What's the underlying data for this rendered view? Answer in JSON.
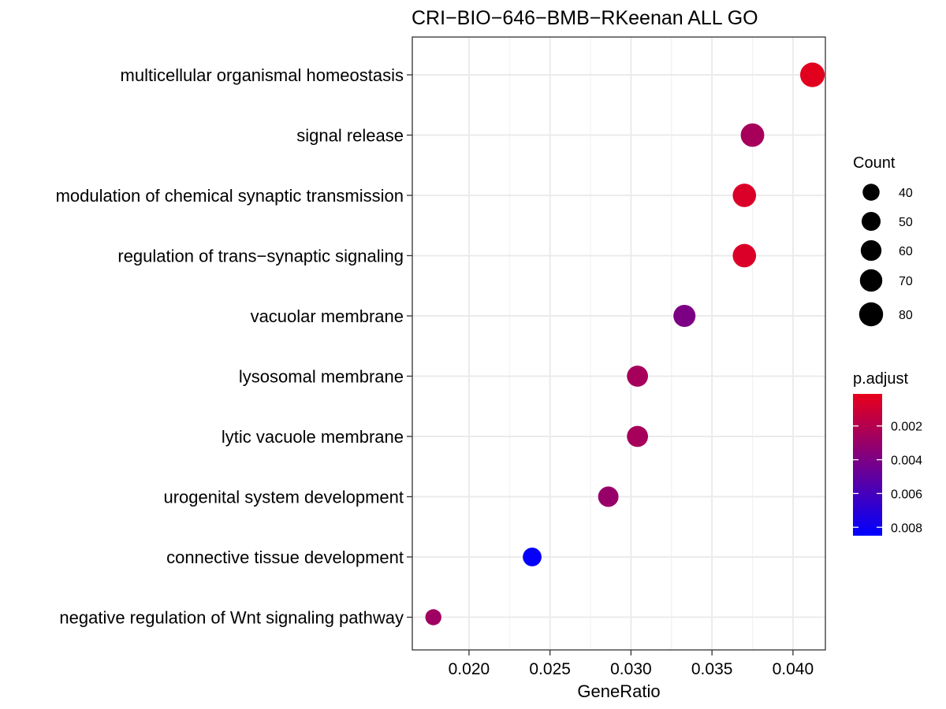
{
  "chart_data": {
    "type": "scatter",
    "title": "CRI−BIO−646−BMB−RKeenan ALL GO",
    "xlabel": "GeneRatio",
    "ylabel": "",
    "xlim": [
      0.0165,
      0.042
    ],
    "x_ticks": [
      0.02,
      0.025,
      0.03,
      0.035,
      0.04
    ],
    "x_tick_labels": [
      "0.020",
      "0.025",
      "0.030",
      "0.035",
      "0.040"
    ],
    "grid": true,
    "categories": [
      "multicellular organismal homeostasis",
      "signal release",
      "modulation of chemical synaptic transmission",
      "regulation of trans−synaptic signaling",
      "vacuolar membrane",
      "lysosomal membrane",
      "lytic vacuole membrane",
      "urogenital system development",
      "connective tissue development",
      "negative regulation of Wnt signaling pathway"
    ],
    "points": [
      {
        "category": "multicellular organismal homeostasis",
        "gene_ratio": 0.0412,
        "count": 84,
        "p_adjust": 0.0003
      },
      {
        "category": "signal release",
        "gene_ratio": 0.0375,
        "count": 77,
        "p_adjust": 0.0025
      },
      {
        "category": "modulation of chemical synaptic transmission",
        "gene_ratio": 0.037,
        "count": 76,
        "p_adjust": 0.0006
      },
      {
        "category": "regulation of trans−synaptic signaling",
        "gene_ratio": 0.037,
        "count": 76,
        "p_adjust": 0.0006
      },
      {
        "category": "vacuolar membrane",
        "gene_ratio": 0.0333,
        "count": 68,
        "p_adjust": 0.004
      },
      {
        "category": "lysosomal membrane",
        "gene_ratio": 0.0304,
        "count": 62,
        "p_adjust": 0.0025
      },
      {
        "category": "lytic vacuole membrane",
        "gene_ratio": 0.0304,
        "count": 62,
        "p_adjust": 0.0025
      },
      {
        "category": "urogenital system development",
        "gene_ratio": 0.0286,
        "count": 58,
        "p_adjust": 0.003
      },
      {
        "category": "connective tissue development",
        "gene_ratio": 0.0239,
        "count": 49,
        "p_adjust": 0.0083
      },
      {
        "category": "negative regulation of Wnt signaling pathway",
        "gene_ratio": 0.0178,
        "count": 36,
        "p_adjust": 0.0027
      }
    ],
    "legend": {
      "placement": "right",
      "size": {
        "title": "Count",
        "values": [
          40,
          50,
          60,
          70,
          80
        ],
        "labels": [
          "40",
          "50",
          "60",
          "70",
          "80"
        ]
      },
      "color": {
        "title": "p.adjust",
        "range": [
          0.0001,
          0.0085
        ],
        "ticks": [
          0.002,
          0.004,
          0.006,
          0.008
        ],
        "tick_labels": [
          "0.002",
          "0.004",
          "0.006",
          "0.008"
        ],
        "low_color": "#e8001a",
        "high_color": "#0000ff"
      }
    }
  }
}
